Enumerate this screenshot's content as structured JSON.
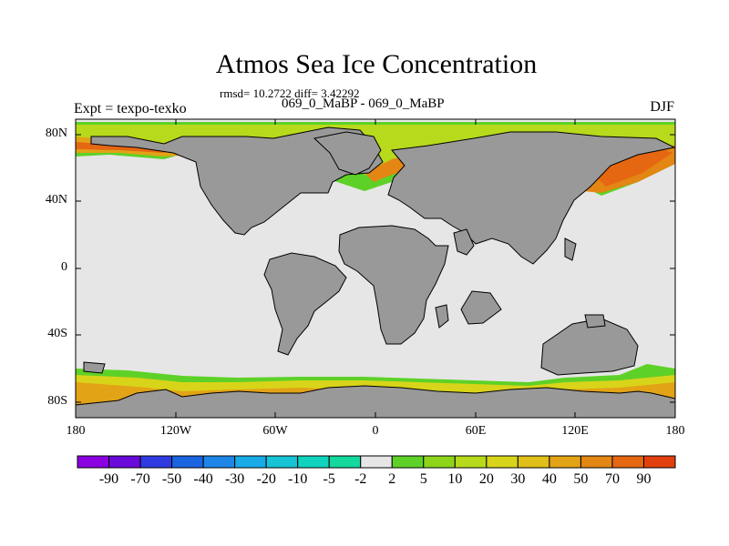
{
  "title": "Atmos Sea Ice Concentration",
  "stats": "rmsd= 10.2722 diff= 3.42292",
  "subtitle": "069_0_MaBP - 069_0_MaBP",
  "left_label": "Expt = texpo-texko",
  "right_label": "DJF",
  "y_ticks": [
    "80N",
    "40N",
    "0",
    "40S",
    "80S"
  ],
  "x_ticks": [
    "180",
    "120W",
    "60W",
    "0",
    "60E",
    "120E",
    "180"
  ],
  "colorbar": {
    "labels": [
      "-90",
      "-70",
      "-50",
      "-40",
      "-30",
      "-20",
      "-10",
      "-5",
      "-2",
      "2",
      "5",
      "10",
      "20",
      "30",
      "40",
      "50",
      "70",
      "90"
    ],
    "colors": [
      "#8a00e0",
      "#6a0ad8",
      "#2f3be0",
      "#1a64e0",
      "#1e86e6",
      "#19aae8",
      "#16c4d6",
      "#10d3be",
      "#14d89e",
      "#e6e6e6",
      "#5ed128",
      "#8dd41b",
      "#b7da1c",
      "#d8d41a",
      "#dfbf18",
      "#e2a316",
      "#e38614",
      "#e56712",
      "#e2400e"
    ]
  },
  "colors": {
    "land": "#999999",
    "ocean": "#e6e6e6",
    "edge": "#6aa41e"
  }
}
